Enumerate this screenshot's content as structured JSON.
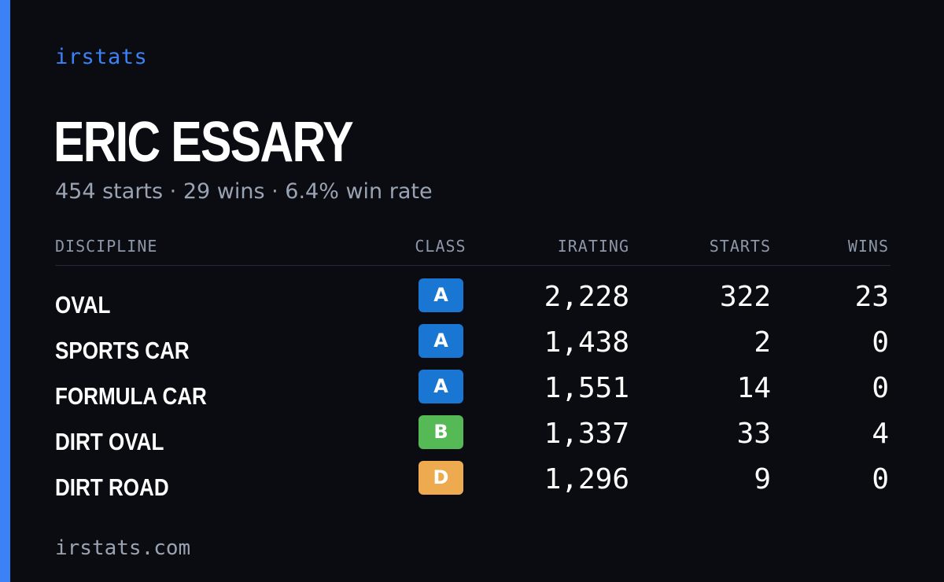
{
  "colors": {
    "accent": "#3b82f6",
    "background": "#0a0c12",
    "class_a": "#1976d2",
    "class_b": "#55b956",
    "class_d": "#eeaa4f"
  },
  "brand": "irstats",
  "driver": {
    "name": "ERIC ESSARY",
    "summary": "454 starts · 29 wins · 6.4% win rate"
  },
  "table": {
    "headers": {
      "discipline": "DISCIPLINE",
      "class": "CLASS",
      "irating": "IRATING",
      "starts": "STARTS",
      "wins": "WINS"
    },
    "rows": [
      {
        "discipline": "OVAL",
        "class": "A",
        "class_color": "#1976d2",
        "irating": "2,228",
        "starts": "322",
        "wins": "23"
      },
      {
        "discipline": "SPORTS CAR",
        "class": "A",
        "class_color": "#1976d2",
        "irating": "1,438",
        "starts": "2",
        "wins": "0"
      },
      {
        "discipline": "FORMULA CAR",
        "class": "A",
        "class_color": "#1976d2",
        "irating": "1,551",
        "starts": "14",
        "wins": "0"
      },
      {
        "discipline": "DIRT OVAL",
        "class": "B",
        "class_color": "#55b956",
        "irating": "1,337",
        "starts": "33",
        "wins": "4"
      },
      {
        "discipline": "DIRT ROAD",
        "class": "D",
        "class_color": "#eeaa4f",
        "irating": "1,296",
        "starts": "9",
        "wins": "0"
      }
    ]
  },
  "footer": "irstats.com"
}
